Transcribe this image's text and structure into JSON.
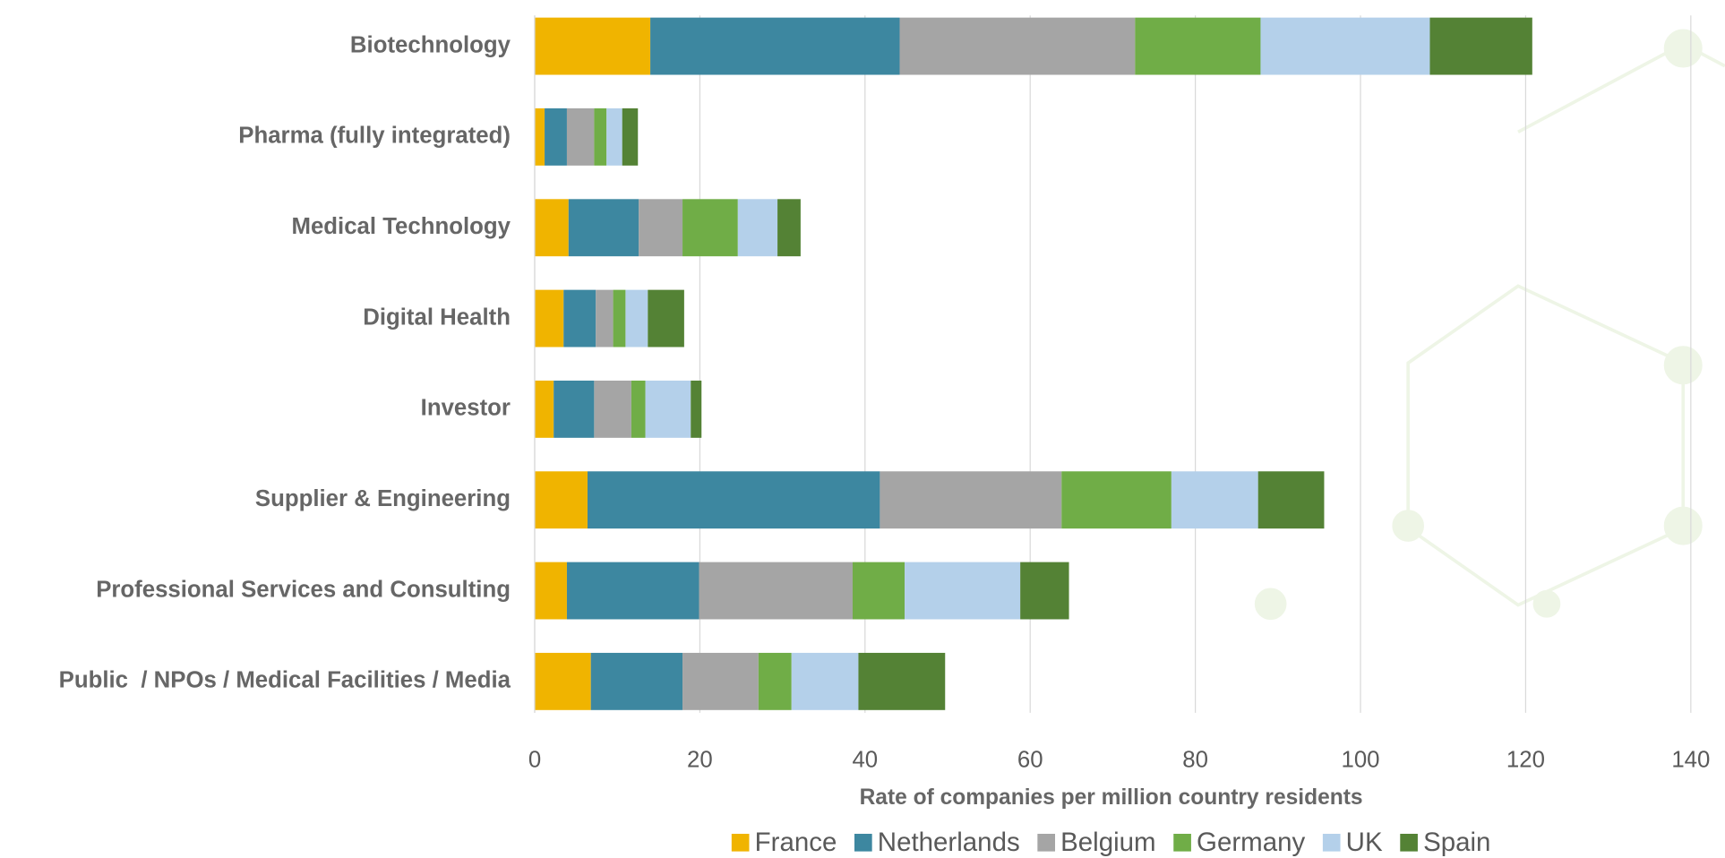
{
  "chart_data": {
    "type": "bar",
    "orientation": "horizontal",
    "stacked": true,
    "x_label": "Rate of companies per million country residents",
    "categories": [
      "Biotechnology",
      "Pharma (fully integrated)",
      "Medical Technology",
      "Digital Health",
      "Investor",
      "Supplier & Engineering",
      "Professional Services and Consulting",
      "Public  / NPOs / Medical Facilities / Media"
    ],
    "series": [
      {
        "name": "France",
        "color": "#f0b400",
        "values": [
          14.0,
          1.2,
          4.1,
          3.5,
          2.3,
          6.4,
          3.9,
          6.8
        ]
      },
      {
        "name": "Netherlands",
        "color": "#3d87a0",
        "values": [
          30.2,
          2.7,
          8.5,
          3.9,
          4.9,
          35.4,
          16.0,
          11.1
        ]
      },
      {
        "name": "Belgium",
        "color": "#a5a5a5",
        "values": [
          28.5,
          3.3,
          5.3,
          2.1,
          4.5,
          22.0,
          18.6,
          9.2
        ]
      },
      {
        "name": "Germany",
        "color": "#70ad47",
        "values": [
          15.2,
          1.5,
          6.7,
          1.5,
          1.7,
          13.3,
          6.3,
          4.0
        ]
      },
      {
        "name": "UK",
        "color": "#b4d0ea",
        "values": [
          20.5,
          1.9,
          4.8,
          2.7,
          5.5,
          10.5,
          14.0,
          8.1
        ]
      },
      {
        "name": "Spain",
        "color": "#548235",
        "values": [
          12.4,
          1.9,
          2.8,
          4.4,
          1.3,
          8.0,
          5.9,
          10.5
        ]
      }
    ],
    "xlim": [
      0,
      140
    ],
    "xticks": [
      0,
      20,
      40,
      60,
      80,
      100,
      120,
      140
    ],
    "grid": true,
    "legend": "bottom"
  }
}
